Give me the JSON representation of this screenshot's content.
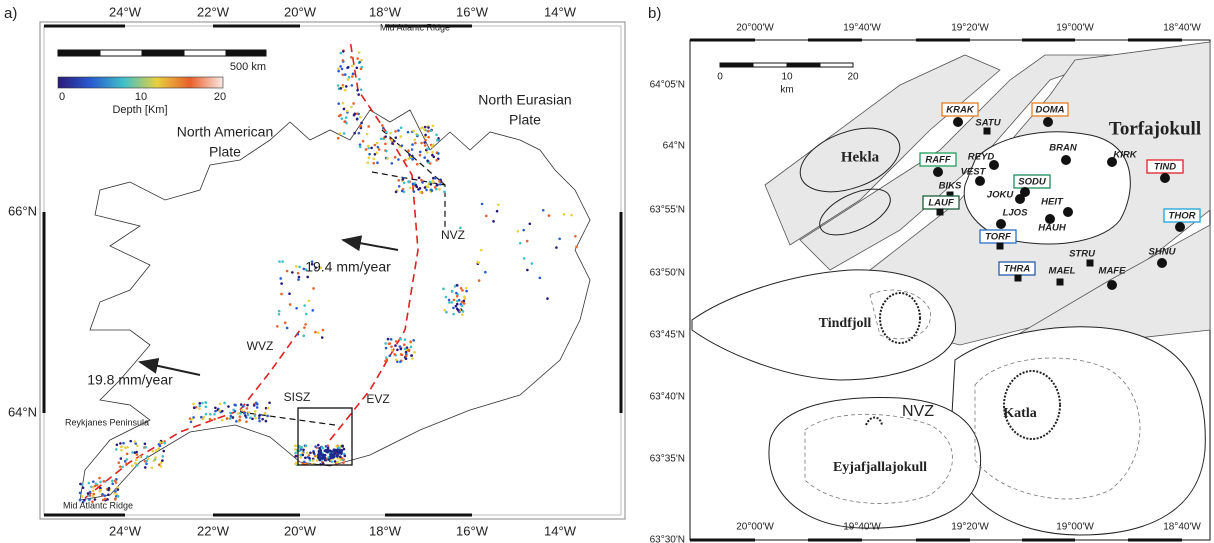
{
  "panel_a": {
    "label": "a)",
    "top_ticks": [
      "24°W",
      "22°W",
      "20°W",
      "18°W",
      "16°W",
      "14°W"
    ],
    "bottom_ticks": [
      "24°W",
      "22°W",
      "20°W",
      "18°W",
      "16°W",
      "14°W"
    ],
    "left_ticks": [
      "66°N",
      "64°N"
    ],
    "scale_label": "500 km",
    "colorbar": {
      "ticks": [
        0,
        10,
        20
      ],
      "label": "Depth [Km]"
    },
    "annotations": [
      "Mid Atlantc Ridge",
      "North American",
      "Plate",
      "North Eurasian",
      "Plate",
      "NVZ",
      "19.4 mm/year",
      "WVZ",
      "19.8 mm/year",
      "SISZ",
      "EVZ",
      "Reykjanes Peninsula",
      "Mid Atlantc Ridge"
    ]
  },
  "panel_b": {
    "label": "b)",
    "top_ticks": [
      "20°00'W",
      "19°40'W",
      "19°20'W",
      "19°00'W",
      "18°40'W"
    ],
    "bottom_ticks": [
      "20°00'W",
      "19°40'W",
      "19°20'W",
      "19°00'W",
      "18°40'W"
    ],
    "left_ticks": [
      "64°05'N",
      "64°N",
      "63°55'N",
      "63°50'N",
      "63°45'N",
      "63°40'N",
      "63°35'N",
      "63°30'N"
    ],
    "scale": {
      "ticks": [
        0,
        10,
        20
      ],
      "unit": "km"
    },
    "regions": [
      "Hekla",
      "Torfajokull",
      "Tindfjoll",
      "NVZ",
      "Katla",
      "Eyjafjallajokull"
    ],
    "stations": [
      {
        "name": "KRAK",
        "marker": "circle",
        "box": "#e67e22"
      },
      {
        "name": "DOMA",
        "marker": "circle",
        "box": "#e67e22"
      },
      {
        "name": "SATU",
        "marker": "square"
      },
      {
        "name": "BRAN",
        "marker": "circle"
      },
      {
        "name": "REYD",
        "marker": "circle"
      },
      {
        "name": "RAFF",
        "marker": "circle",
        "box": "#1e9e5a"
      },
      {
        "name": "VEST",
        "marker": "circle"
      },
      {
        "name": "KIRK",
        "marker": "circle"
      },
      {
        "name": "TIND",
        "marker": "circle",
        "box": "#e0202a"
      },
      {
        "name": "SODU",
        "marker": "circle",
        "box": "#1e8c5a"
      },
      {
        "name": "BIKS",
        "marker": "square"
      },
      {
        "name": "JOKU",
        "marker": "circle"
      },
      {
        "name": "HEIT",
        "marker": "circle"
      },
      {
        "name": "LAUF",
        "marker": "square",
        "box": "#1b5e3a"
      },
      {
        "name": "LJOS",
        "marker": "circle"
      },
      {
        "name": "HAUH",
        "marker": "circle"
      },
      {
        "name": "THOR",
        "marker": "circle",
        "box": "#1aa3d9"
      },
      {
        "name": "TORF",
        "marker": "square",
        "box": "#2a6fc9"
      },
      {
        "name": "STRU",
        "marker": "square"
      },
      {
        "name": "SHNU",
        "marker": "circle"
      },
      {
        "name": "THRA",
        "marker": "square",
        "box": "#2a5ca8"
      },
      {
        "name": "MAEL",
        "marker": "square"
      },
      {
        "name": "MAFE",
        "marker": "circle"
      }
    ]
  }
}
